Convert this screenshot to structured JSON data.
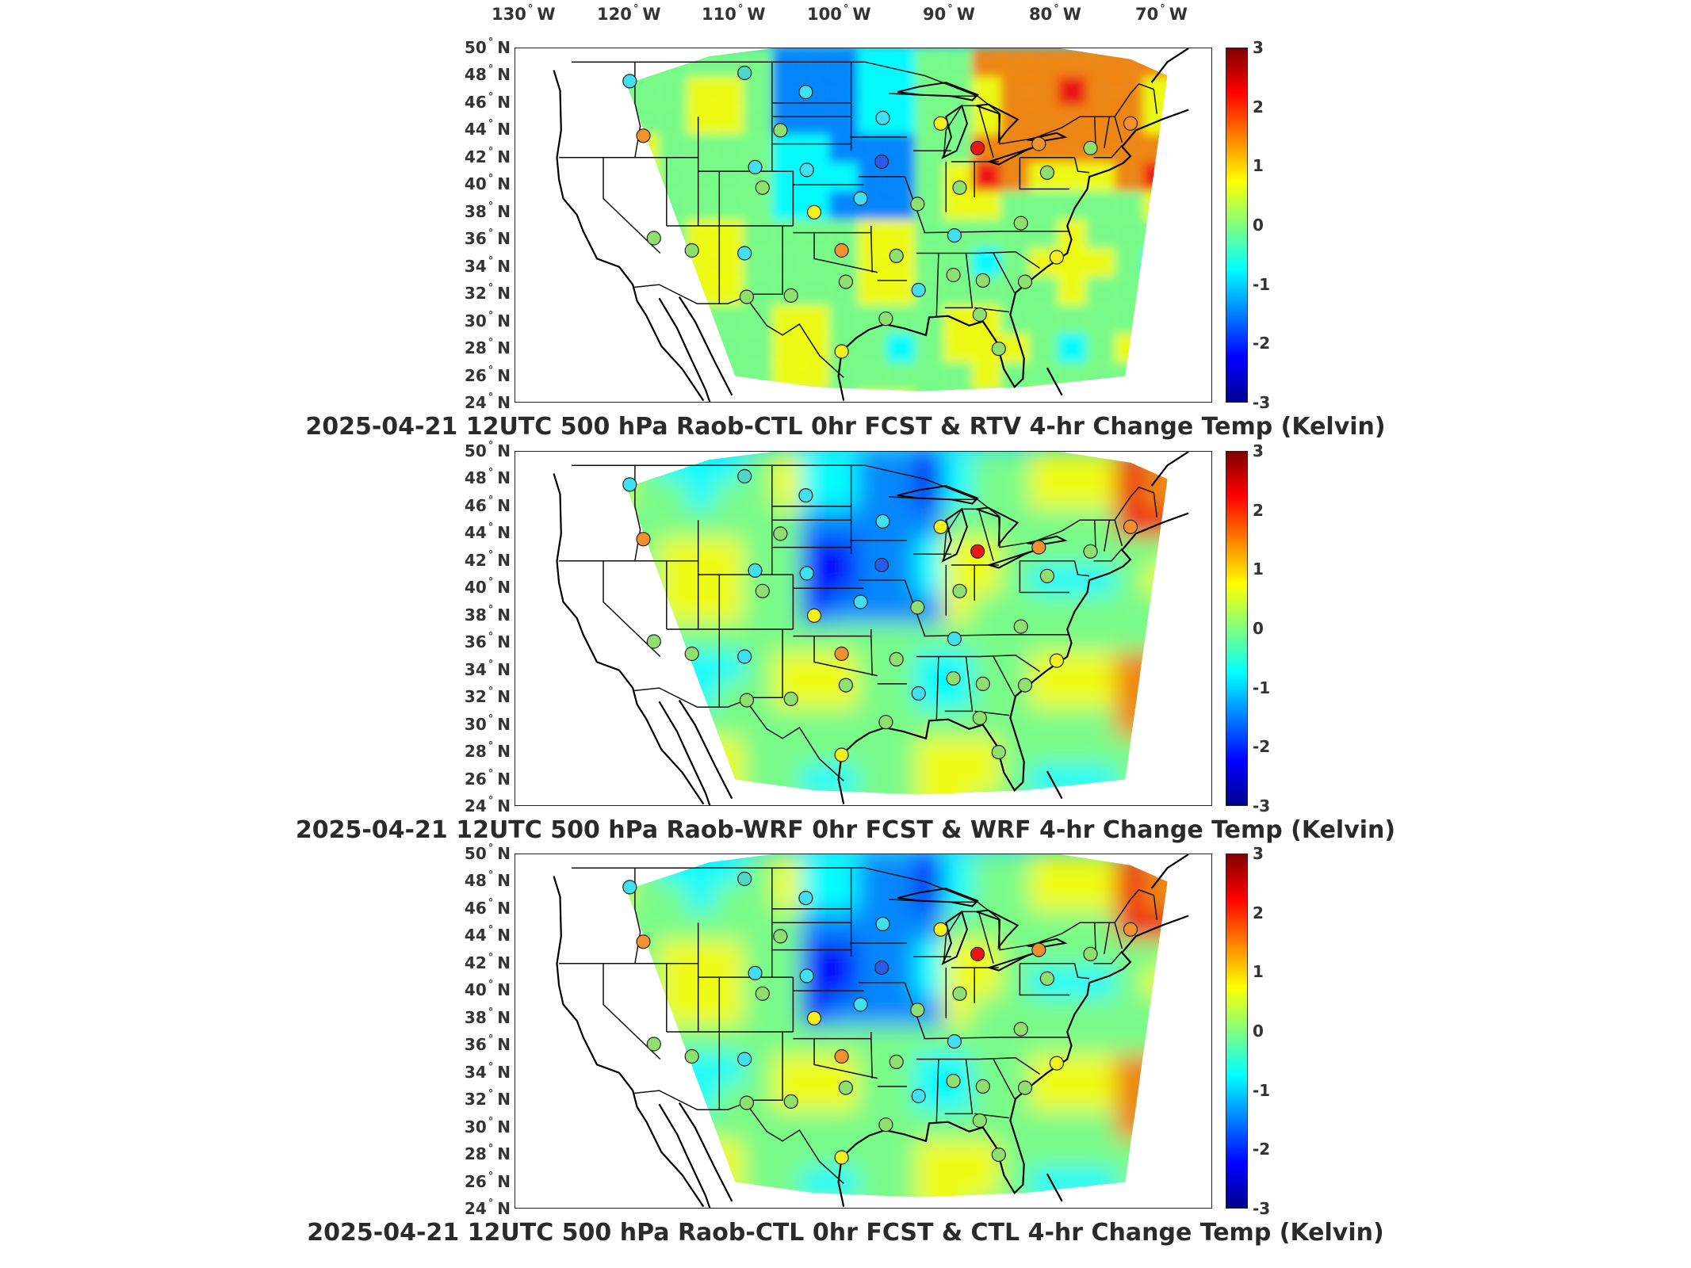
{
  "lon_labels": [
    {
      "deg": "130",
      "hemi": "W"
    },
    {
      "deg": "120",
      "hemi": "W"
    },
    {
      "deg": "110",
      "hemi": "W"
    },
    {
      "deg": "100",
      "hemi": "W"
    },
    {
      "deg": "90",
      "hemi": "W"
    },
    {
      "deg": "80",
      "hemi": "W"
    },
    {
      "deg": "70",
      "hemi": "W"
    }
  ],
  "lat_labels": [
    {
      "deg": "50",
      "hemi": "N"
    },
    {
      "deg": "48",
      "hemi": "N"
    },
    {
      "deg": "46",
      "hemi": "N"
    },
    {
      "deg": "44",
      "hemi": "N"
    },
    {
      "deg": "42",
      "hemi": "N"
    },
    {
      "deg": "40",
      "hemi": "N"
    },
    {
      "deg": "38",
      "hemi": "N"
    },
    {
      "deg": "36",
      "hemi": "N"
    },
    {
      "deg": "34",
      "hemi": "N"
    },
    {
      "deg": "32",
      "hemi": "N"
    },
    {
      "deg": "30",
      "hemi": "N"
    },
    {
      "deg": "28",
      "hemi": "N"
    },
    {
      "deg": "26",
      "hemi": "N"
    },
    {
      "deg": "24",
      "hemi": "N"
    }
  ],
  "colorbar": {
    "ticks": [
      "3",
      "2",
      "1",
      "0",
      "-1",
      "-2",
      "-3"
    ],
    "colors": [
      "#00008f",
      "#0000ff",
      "#0080ff",
      "#00ffff",
      "#80ff80",
      "#ffff00",
      "#ff8000",
      "#ff0000",
      "#800000"
    ]
  },
  "panels": [
    {
      "caption": "2025-04-21 12UTC 500 hPa Raob-CTL 0hr FCST & RTV 4-hr Change Temp (Kelvin)",
      "field_base": "#34c9e8"
    },
    {
      "caption": "2025-04-21 12UTC 500 hPa Raob-WRF 0hr FCST & WRF 4-hr Change Temp (Kelvin)",
      "field_base": "#3fd7ee"
    },
    {
      "caption": "2025-04-21 12UTC 500 hPa Raob-CTL 0hr FCST & CTL 4-hr Change Temp (Kelvin)",
      "field_base": "#3fd7ee"
    }
  ],
  "raob_value_colors": {
    "cyan": "#40e0f0",
    "teal": "#4fd8c8",
    "green": "#8fe070",
    "yellow": "#f0f020",
    "orange": "#f09030",
    "red": "#e81818",
    "blue": "#2a5ae8"
  },
  "raob_stations": [
    {
      "lat": 47.6,
      "lon": -117.5,
      "c": "cyan"
    },
    {
      "lat": 48.2,
      "lon": -106.6,
      "c": "teal"
    },
    {
      "lat": 46.8,
      "lon": -100.8,
      "c": "cyan"
    },
    {
      "lat": 43.6,
      "lon": -116.2,
      "c": "orange"
    },
    {
      "lat": 44.0,
      "lon": -103.2,
      "c": "green"
    },
    {
      "lat": 41.3,
      "lon": -105.6,
      "c": "cyan"
    },
    {
      "lat": 41.1,
      "lon": -100.7,
      "c": "cyan"
    },
    {
      "lat": 44.9,
      "lon": -93.5,
      "c": "cyan"
    },
    {
      "lat": 41.7,
      "lon": -93.6,
      "c": "blue"
    },
    {
      "lat": 44.5,
      "lon": -88.0,
      "c": "yellow"
    },
    {
      "lat": 42.7,
      "lon": -84.5,
      "c": "red"
    },
    {
      "lat": 43.0,
      "lon": -78.7,
      "c": "orange"
    },
    {
      "lat": 42.7,
      "lon": -73.8,
      "c": "green"
    },
    {
      "lat": 44.5,
      "lon": -70.0,
      "c": "orange"
    },
    {
      "lat": 40.9,
      "lon": -77.9,
      "c": "green"
    },
    {
      "lat": 39.8,
      "lon": -86.2,
      "c": "green"
    },
    {
      "lat": 39.0,
      "lon": -95.6,
      "c": "cyan"
    },
    {
      "lat": 38.0,
      "lon": -100.0,
      "c": "yellow"
    },
    {
      "lat": 39.8,
      "lon": -104.9,
      "c": "green"
    },
    {
      "lat": 38.6,
      "lon": -90.2,
      "c": "green"
    },
    {
      "lat": 36.3,
      "lon": -86.7,
      "c": "cyan"
    },
    {
      "lat": 37.2,
      "lon": -80.4,
      "c": "green"
    },
    {
      "lat": 36.1,
      "lon": -115.2,
      "c": "green"
    },
    {
      "lat": 35.2,
      "lon": -111.6,
      "c": "green"
    },
    {
      "lat": 35.0,
      "lon": -106.6,
      "c": "cyan"
    },
    {
      "lat": 35.2,
      "lon": -97.4,
      "c": "orange"
    },
    {
      "lat": 34.8,
      "lon": -92.2,
      "c": "green"
    },
    {
      "lat": 32.9,
      "lon": -97.0,
      "c": "green"
    },
    {
      "lat": 32.3,
      "lon": -90.1,
      "c": "cyan"
    },
    {
      "lat": 33.4,
      "lon": -86.8,
      "c": "green"
    },
    {
      "lat": 33.0,
      "lon": -84.0,
      "c": "green"
    },
    {
      "lat": 32.9,
      "lon": -80.0,
      "c": "green"
    },
    {
      "lat": 34.7,
      "lon": -77.0,
      "c": "yellow"
    },
    {
      "lat": 31.8,
      "lon": -106.4,
      "c": "green"
    },
    {
      "lat": 31.9,
      "lon": -102.2,
      "c": "green"
    },
    {
      "lat": 27.8,
      "lon": -97.4,
      "c": "yellow"
    },
    {
      "lat": 30.2,
      "lon": -93.2,
      "c": "green"
    },
    {
      "lat": 30.5,
      "lon": -84.3,
      "c": "green"
    },
    {
      "lat": 28.0,
      "lon": -82.5,
      "c": "green"
    }
  ]
}
